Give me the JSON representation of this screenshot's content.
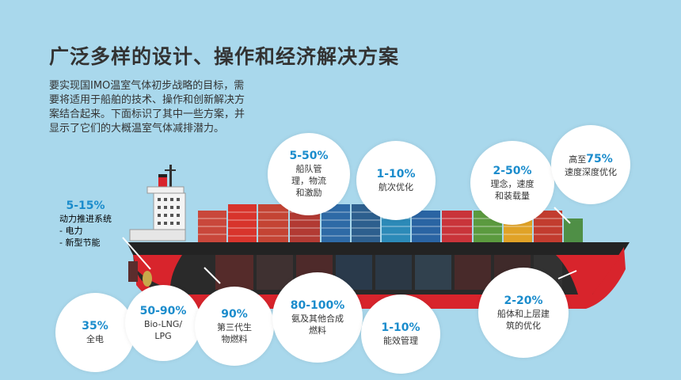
{
  "title": "广泛多样的设计、操作和经济解决方案",
  "intro": "要实现国IMO温室气体初步战略的目标，需要将适用于船舶的技术、操作和创新解决方案结合起来。下面标识了其中一些方案，并显示了它们的大概温室气体减排潜力。",
  "solutions": {
    "propulsion": {
      "pct": "5-15%",
      "label": "动力推进系统\n- 电力\n- 新型节能"
    },
    "fleet": {
      "pct": "5-50%",
      "label": "船队管\n理，物流\n和激励"
    },
    "voyage": {
      "pct": "1-10%",
      "label": "航次优化"
    },
    "concept": {
      "pct": "2-50%",
      "label": "理念，速度\n和装载量"
    },
    "speed": {
      "prefix": "高至",
      "pct": "75%",
      "label": "速度深度优化"
    },
    "electric": {
      "pct": "35%",
      "label": "全电"
    },
    "lng": {
      "pct": "50-90%",
      "label": "Bio-LNG/\nLPG"
    },
    "biofuel": {
      "pct": "90%",
      "label": "第三代生\n物燃料"
    },
    "ammonia": {
      "pct": "80-100%",
      "label": "氨及其他合成\n燃料"
    },
    "energy": {
      "pct": "1-10%",
      "label": "能效管理"
    },
    "hull": {
      "pct": "2-20%",
      "label": "船体和上层建\n筑的优化"
    }
  },
  "colors": {
    "accent": "#1b8ccc",
    "hull_red": "#d8242c",
    "hull_dark": "#232323",
    "background": "#a9d8ec"
  }
}
